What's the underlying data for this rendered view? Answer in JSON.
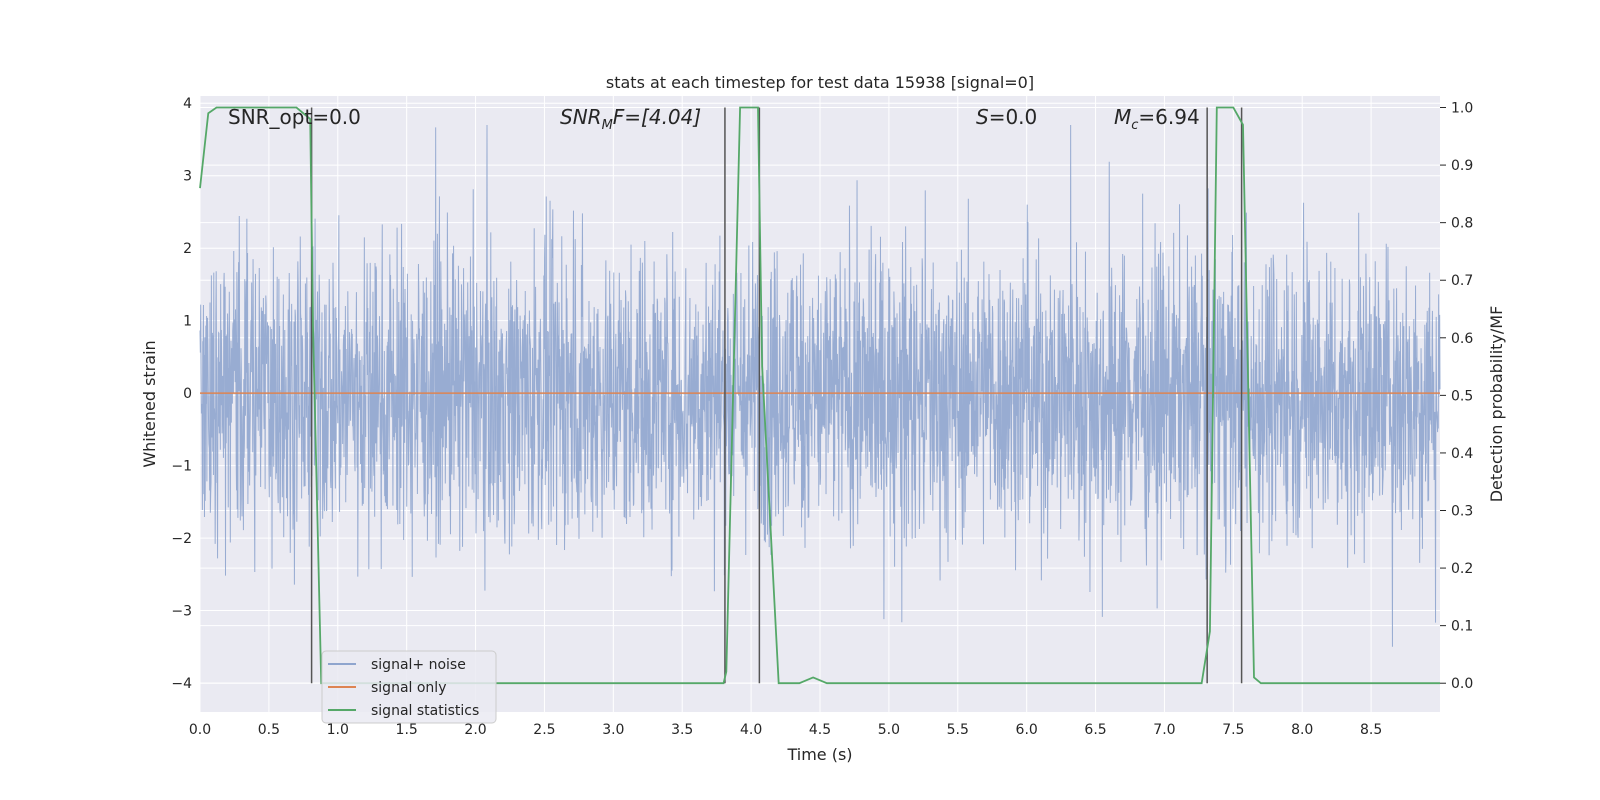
{
  "chart_data": {
    "type": "line",
    "title": "stats at each timestep for test data 15938 [signal=0]",
    "xlabel": "Time (s)",
    "ylabel": "Whitened strain",
    "y2label": "Detection probability/MF",
    "xlim": [
      0.0,
      9.0
    ],
    "ylim": [
      -4.4,
      4.1
    ],
    "y2lim": [
      -0.05,
      1.02
    ],
    "xticks": [
      "0.0",
      "0.5",
      "1.0",
      "1.5",
      "2.0",
      "2.5",
      "3.0",
      "3.5",
      "4.0",
      "4.5",
      "5.0",
      "5.5",
      "6.0",
      "6.5",
      "7.0",
      "7.5",
      "8.0",
      "8.5"
    ],
    "yticks": [
      "4",
      "3",
      "2",
      "1",
      "0",
      "−1",
      "−2",
      "−3",
      "−4"
    ],
    "y2ticks": [
      "1.0",
      "0.9",
      "0.8",
      "0.7",
      "0.6",
      "0.5",
      "0.4",
      "0.3",
      "0.2",
      "0.1",
      "0.0"
    ],
    "grid": true,
    "legend_position": "lower-left",
    "annotations": {
      "snr_opt": "SNR_opt=0.0",
      "snr_mf_main": "SNR",
      "snr_mf_sub": "M",
      "snr_mf_tail": "F=[4.04]",
      "s_var": "S",
      "s_val": "=0.0",
      "mc_var": "M",
      "mc_sub": "c",
      "mc_val": "=6.94"
    },
    "series": [
      {
        "name": "signal+ noise",
        "color": "#8fa5ce",
        "kind": "strain-noise",
        "envelope": [
          -3.5,
          3.7
        ]
      },
      {
        "name": "signal only",
        "color": "#dd8452",
        "kind": "constant",
        "value": 0.0
      },
      {
        "name": "signal statistics",
        "color": "#55a868",
        "axis": "right",
        "x": [
          0.0,
          0.06,
          0.12,
          0.5,
          0.7,
          0.8,
          0.82,
          0.88,
          0.95,
          1.5,
          2.5,
          3.5,
          3.8,
          3.82,
          3.92,
          4.05,
          4.08,
          4.2,
          4.35,
          4.45,
          4.55,
          5.0,
          6.0,
          7.0,
          7.27,
          7.33,
          7.38,
          7.5,
          7.57,
          7.65,
          7.7,
          8.0,
          9.0
        ],
        "y": [
          0.86,
          0.99,
          1.0,
          1.0,
          1.0,
          0.98,
          0.62,
          0.0,
          0.0,
          0.0,
          0.0,
          0.0,
          0.0,
          0.02,
          1.0,
          1.0,
          0.55,
          0.0,
          0.0,
          0.01,
          0.0,
          0.0,
          0.0,
          0.0,
          0.0,
          0.09,
          1.0,
          1.0,
          0.97,
          0.01,
          0.0,
          0.0,
          0.0
        ]
      }
    ],
    "vlines": [
      0.81,
      3.81,
      4.06,
      7.31,
      7.56
    ],
    "vline_range": [
      0.0,
      1.0
    ],
    "vline_color": "#555555"
  }
}
